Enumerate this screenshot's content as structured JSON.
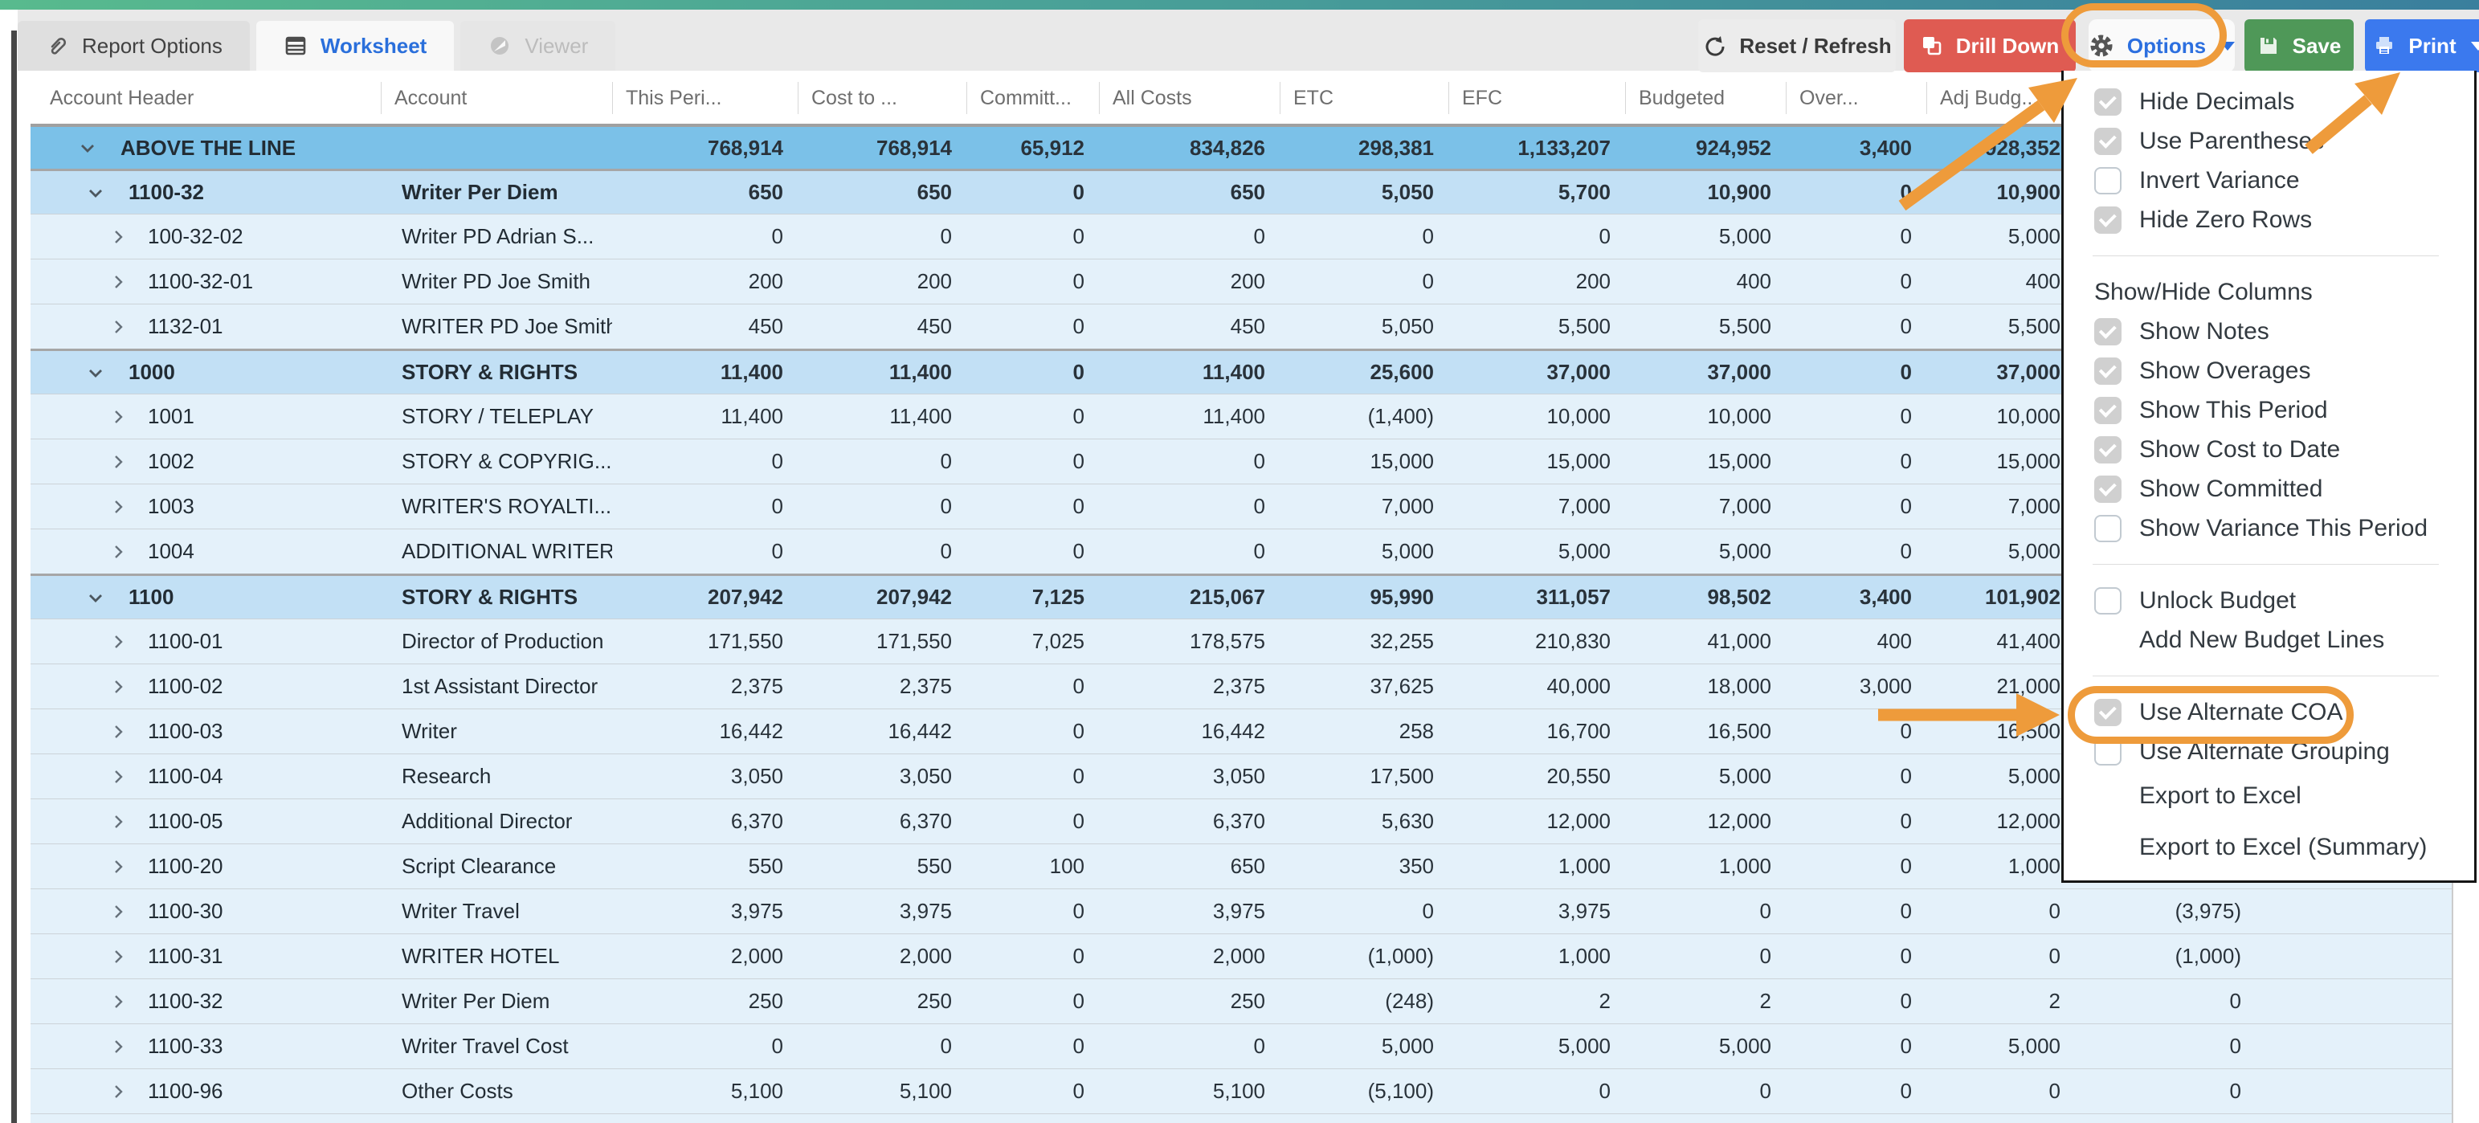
{
  "topbar": {
    "tabs": [
      {
        "label": "Report Options",
        "icon": "paperclip-icon",
        "state": "inactive"
      },
      {
        "label": "Worksheet",
        "icon": "worksheet-grid-icon",
        "state": "active"
      },
      {
        "label": "Viewer",
        "icon": "viewer-icon",
        "state": "disabled"
      }
    ],
    "buttons": {
      "reset": "Reset / Refresh",
      "drill_down": "Drill Down",
      "options": "Options",
      "save": "Save",
      "print": "Print"
    }
  },
  "table": {
    "columns": [
      "Account Header",
      "Account",
      "This Peri...",
      "Cost to ...",
      "Committ...",
      "All Costs",
      "ETC",
      "EFC",
      "Budgeted",
      "Over...",
      "Adj Budg...",
      ""
    ],
    "rows": [
      {
        "type": "atl",
        "code": "ABOVE THE LINE",
        "account": "",
        "values": [
          "768,914",
          "768,914",
          "65,912",
          "834,826",
          "298,381",
          "1,133,207",
          "924,952",
          "3,400",
          "928,352",
          ""
        ]
      },
      {
        "type": "group",
        "code": "1100-32",
        "account": "Writer Per Diem",
        "values": [
          "650",
          "650",
          "0",
          "650",
          "5,050",
          "5,700",
          "10,900",
          "0",
          "10,900",
          ""
        ]
      },
      {
        "type": "child",
        "code": "100-32-02",
        "account": "Writer PD Adrian S...",
        "values": [
          "0",
          "0",
          "0",
          "0",
          "0",
          "0",
          "5,000",
          "0",
          "5,000",
          ""
        ]
      },
      {
        "type": "child",
        "code": "1100-32-01",
        "account": "Writer PD Joe Smith",
        "values": [
          "200",
          "200",
          "0",
          "200",
          "0",
          "200",
          "400",
          "0",
          "400",
          ""
        ]
      },
      {
        "type": "child",
        "code": "1132-01",
        "account": "WRITER PD Joe Smith",
        "values": [
          "450",
          "450",
          "0",
          "450",
          "5,050",
          "5,500",
          "5,500",
          "0",
          "5,500",
          ""
        ]
      },
      {
        "type": "group",
        "code": "1000",
        "account": "STORY & RIGHTS",
        "values": [
          "11,400",
          "11,400",
          "0",
          "11,400",
          "25,600",
          "37,000",
          "37,000",
          "0",
          "37,000",
          ""
        ]
      },
      {
        "type": "child",
        "code": "1001",
        "account": "STORY / TELEPLAY",
        "values": [
          "11,400",
          "11,400",
          "0",
          "11,400",
          "(1,400)",
          "10,000",
          "10,000",
          "0",
          "10,000",
          ""
        ]
      },
      {
        "type": "child",
        "code": "1002",
        "account": "STORY & COPYRIG...",
        "values": [
          "0",
          "0",
          "0",
          "0",
          "15,000",
          "15,000",
          "15,000",
          "0",
          "15,000",
          ""
        ]
      },
      {
        "type": "child",
        "code": "1003",
        "account": "WRITER'S ROYALTI...",
        "values": [
          "0",
          "0",
          "0",
          "0",
          "7,000",
          "7,000",
          "7,000",
          "0",
          "7,000",
          ""
        ]
      },
      {
        "type": "child",
        "code": "1004",
        "account": "ADDITIONAL WRITER",
        "values": [
          "0",
          "0",
          "0",
          "0",
          "5,000",
          "5,000",
          "5,000",
          "0",
          "5,000",
          ""
        ]
      },
      {
        "type": "group",
        "code": "1100",
        "account": "STORY & RIGHTS",
        "values": [
          "207,942",
          "207,942",
          "7,125",
          "215,067",
          "95,990",
          "311,057",
          "98,502",
          "3,400",
          "101,902",
          ""
        ]
      },
      {
        "type": "child",
        "code": "1100-01",
        "account": "Director of Production",
        "values": [
          "171,550",
          "171,550",
          "7,025",
          "178,575",
          "32,255",
          "210,830",
          "41,000",
          "400",
          "41,400",
          ""
        ]
      },
      {
        "type": "child",
        "code": "1100-02",
        "account": "1st Assistant Director",
        "values": [
          "2,375",
          "2,375",
          "0",
          "2,375",
          "37,625",
          "40,000",
          "18,000",
          "3,000",
          "21,000",
          ""
        ]
      },
      {
        "type": "child",
        "code": "1100-03",
        "account": "Writer",
        "values": [
          "16,442",
          "16,442",
          "0",
          "16,442",
          "258",
          "16,700",
          "16,500",
          "0",
          "16,500",
          ""
        ]
      },
      {
        "type": "child",
        "code": "1100-04",
        "account": "Research",
        "values": [
          "3,050",
          "3,050",
          "0",
          "3,050",
          "17,500",
          "20,550",
          "5,000",
          "0",
          "5,000",
          ""
        ]
      },
      {
        "type": "child",
        "code": "1100-05",
        "account": "Additional Director",
        "values": [
          "6,370",
          "6,370",
          "0",
          "6,370",
          "5,630",
          "12,000",
          "12,000",
          "0",
          "12,000",
          ""
        ]
      },
      {
        "type": "child",
        "code": "1100-20",
        "account": "Script Clearance",
        "values": [
          "550",
          "550",
          "100",
          "650",
          "350",
          "1,000",
          "1,000",
          "0",
          "1,000",
          ""
        ]
      },
      {
        "type": "child",
        "code": "1100-30",
        "account": "Writer Travel",
        "values": [
          "3,975",
          "3,975",
          "0",
          "3,975",
          "0",
          "3,975",
          "0",
          "0",
          "0",
          "(3,975)"
        ]
      },
      {
        "type": "child",
        "code": "1100-31",
        "account": "WRITER HOTEL",
        "values": [
          "2,000",
          "2,000",
          "0",
          "2,000",
          "(1,000)",
          "1,000",
          "0",
          "0",
          "0",
          "(1,000)"
        ]
      },
      {
        "type": "child",
        "code": "1100-32",
        "account": "Writer Per Diem",
        "values": [
          "250",
          "250",
          "0",
          "250",
          "(248)",
          "2",
          "2",
          "0",
          "2",
          "0"
        ]
      },
      {
        "type": "child",
        "code": "1100-33",
        "account": "Writer Travel Cost",
        "values": [
          "0",
          "0",
          "0",
          "0",
          "5,000",
          "5,000",
          "5,000",
          "0",
          "5,000",
          "0"
        ]
      },
      {
        "type": "child",
        "code": "1100-96",
        "account": "Other Costs",
        "values": [
          "5,100",
          "5,100",
          "0",
          "5,100",
          "(5,100)",
          "0",
          "0",
          "0",
          "0",
          "0"
        ]
      }
    ]
  },
  "options_menu": {
    "items": [
      {
        "type": "check",
        "label": "Hide Decimals",
        "checked": true
      },
      {
        "type": "check",
        "label": "Use Parentheses",
        "checked": true
      },
      {
        "type": "check",
        "label": "Invert Variance",
        "checked": false
      },
      {
        "type": "check",
        "label": "Hide Zero Rows",
        "checked": true
      },
      {
        "type": "divider"
      },
      {
        "type": "label",
        "label": "Show/Hide Columns"
      },
      {
        "type": "check",
        "label": "Show Notes",
        "checked": true
      },
      {
        "type": "check",
        "label": "Show Overages",
        "checked": true
      },
      {
        "type": "check",
        "label": "Show This Period",
        "checked": true
      },
      {
        "type": "check",
        "label": "Show Cost to Date",
        "checked": true
      },
      {
        "type": "check",
        "label": "Show Committed",
        "checked": true
      },
      {
        "type": "check",
        "label": "Show Variance This Period",
        "checked": false
      },
      {
        "type": "divider"
      },
      {
        "type": "check",
        "label": "Unlock Budget",
        "checked": false
      },
      {
        "type": "action",
        "label": "Add New Budget Lines"
      },
      {
        "type": "divider"
      },
      {
        "type": "check",
        "label": "Use Alternate COA",
        "checked": true,
        "highlighted": true
      },
      {
        "type": "check",
        "label": "Use Alternate Grouping",
        "checked": false
      },
      {
        "type": "action",
        "label": "Export to Excel",
        "size": "tall"
      },
      {
        "type": "action",
        "label": "Export to Excel (Summary)",
        "size": "taller"
      }
    ]
  },
  "annotations": {
    "highlight_color": "#EE9B3B",
    "arrows": [
      {
        "target": "options-button"
      },
      {
        "target": "menu-item-use-alternate-coa"
      },
      {
        "target": "print-button"
      }
    ]
  }
}
